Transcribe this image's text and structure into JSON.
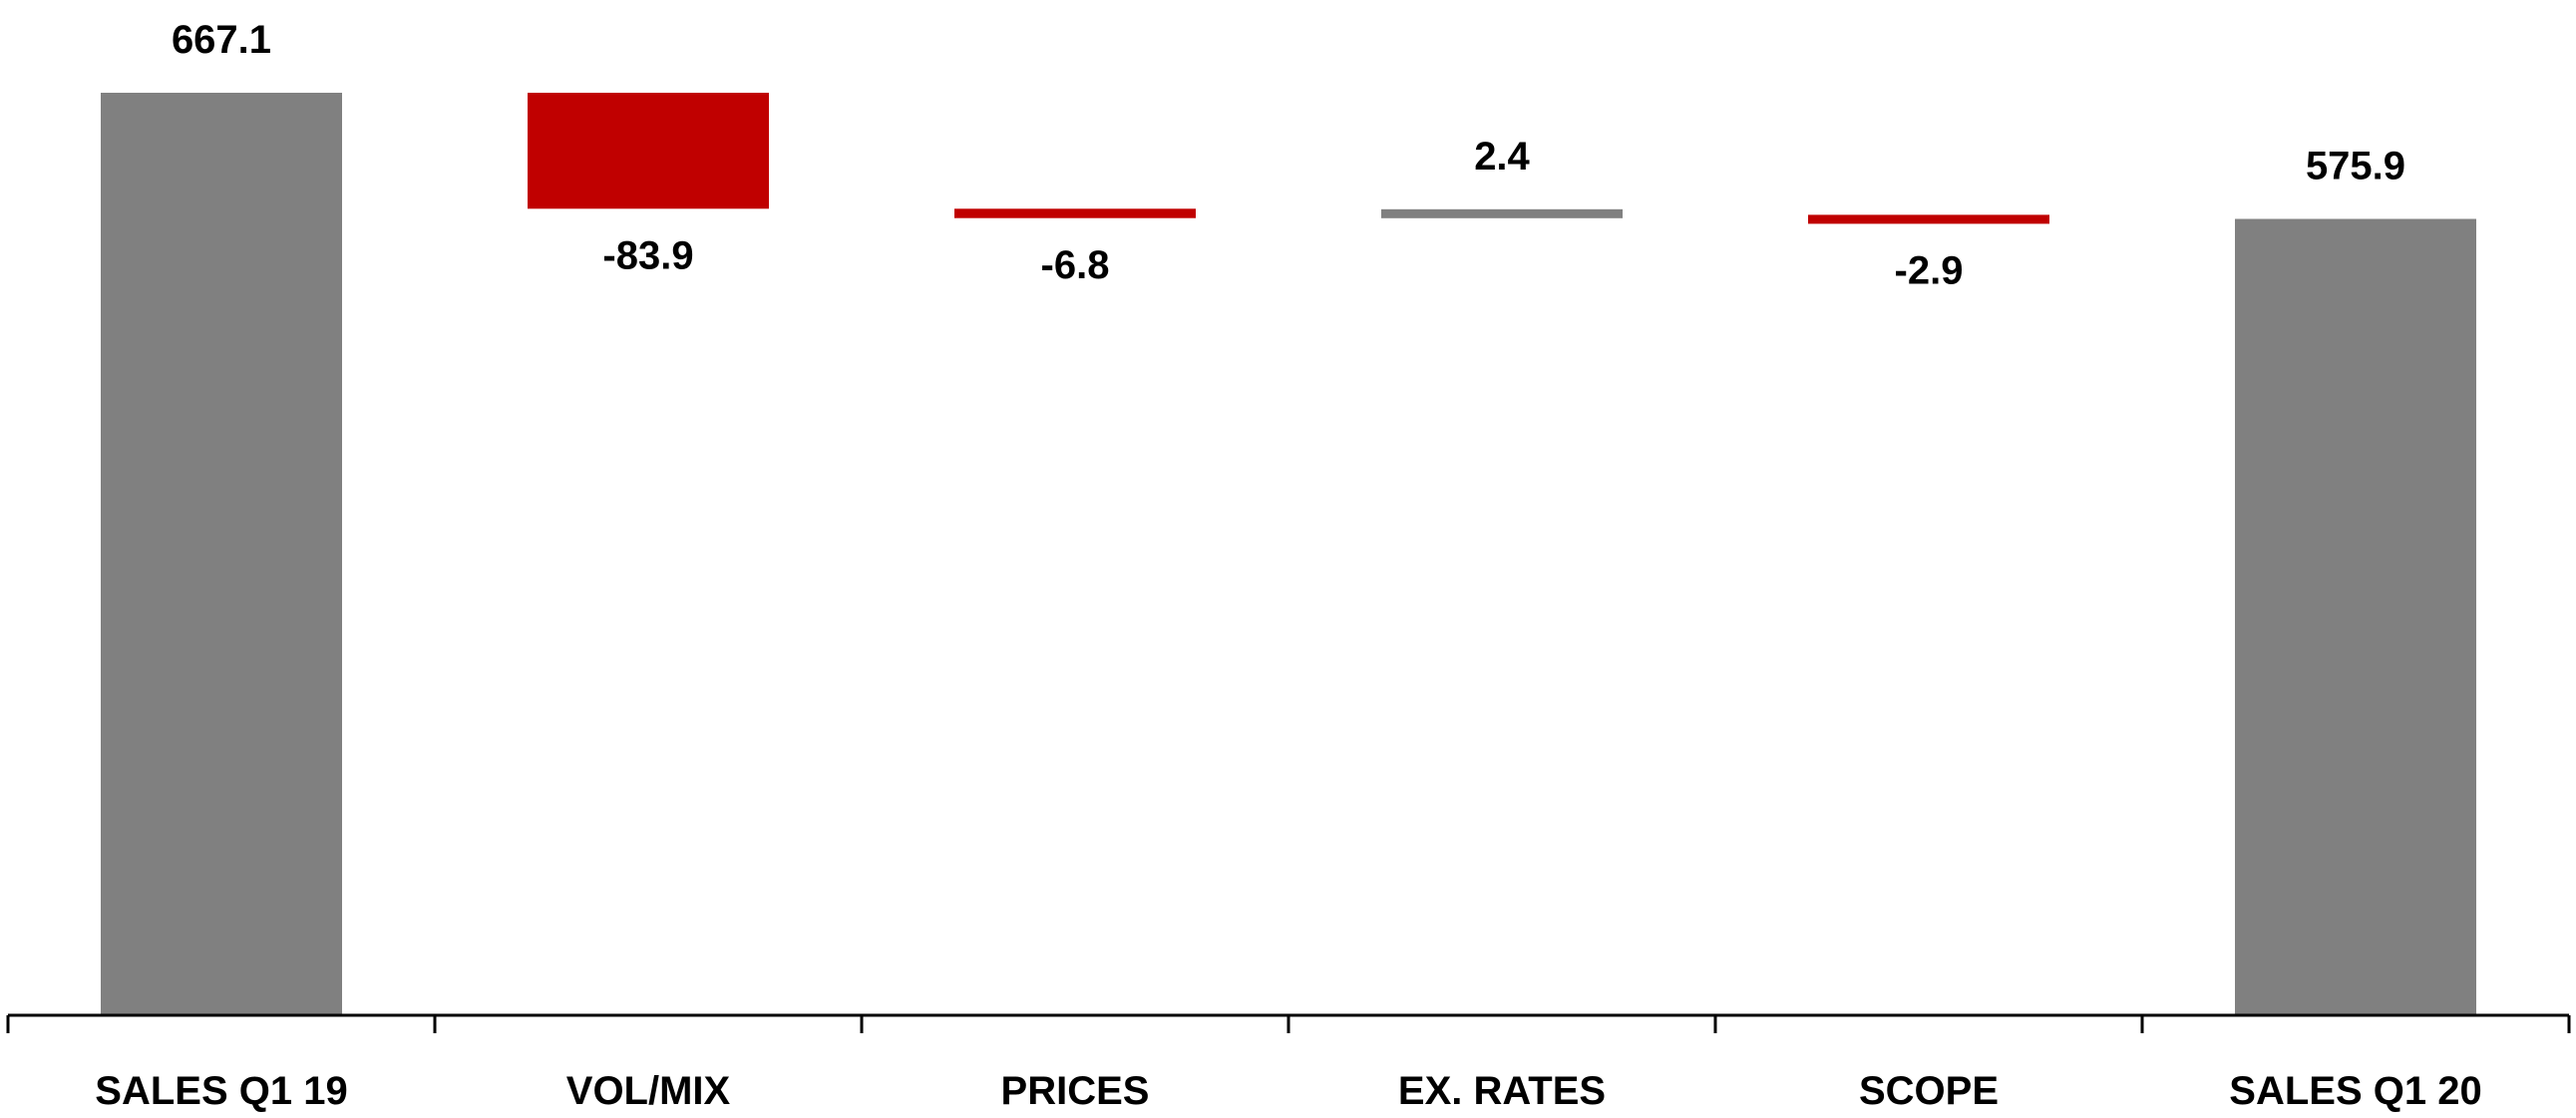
{
  "chart_data": {
    "type": "waterfall",
    "title": "",
    "xlabel": "",
    "ylabel": "",
    "categories": [
      "SALES Q1 19",
      "VOL/MIX",
      "PRICES",
      "EX. RATES",
      "SCOPE",
      "SALES Q1 20"
    ],
    "values": [
      667.1,
      -83.9,
      -6.8,
      2.4,
      -2.9,
      575.9
    ],
    "kinds": [
      "total",
      "delta",
      "delta",
      "delta",
      "delta",
      "total"
    ],
    "value_labels": [
      "667.1",
      "-83.9",
      "-6.8",
      "2.4",
      "-2.9",
      "575.9"
    ],
    "ylim": [
      0,
      667.1
    ],
    "grid": false,
    "legend": "none",
    "colors": {
      "total": "#808080",
      "negative": "#c00000",
      "positive": "#808080",
      "axis": "#000000",
      "text": "#000000"
    }
  }
}
